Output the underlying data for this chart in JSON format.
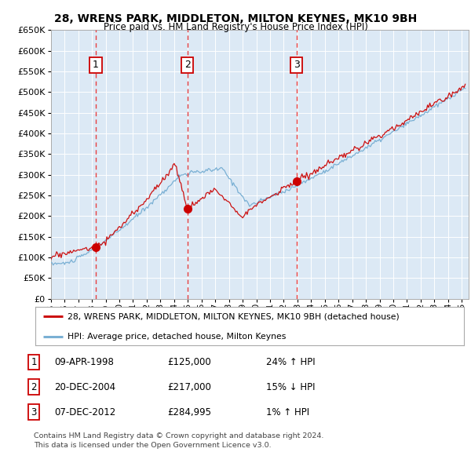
{
  "title": "28, WRENS PARK, MIDDLETON, MILTON KEYNES, MK10 9BH",
  "subtitle": "Price paid vs. HM Land Registry's House Price Index (HPI)",
  "xlim_start": 1995.0,
  "xlim_end": 2025.5,
  "ylim_min": 0,
  "ylim_max": 650000,
  "yticks": [
    0,
    50000,
    100000,
    150000,
    200000,
    250000,
    300000,
    350000,
    400000,
    450000,
    500000,
    550000,
    600000,
    650000
  ],
  "background_color": "#dce9f5",
  "plot_bg_color": "#dce9f5",
  "grid_color": "#ffffff",
  "sale_dates": [
    1998.27,
    2004.97,
    2012.93
  ],
  "sale_prices": [
    125000,
    217000,
    284995
  ],
  "sale_labels": [
    "1",
    "2",
    "3"
  ],
  "vline_color": "#e84040",
  "sale_dot_color": "#cc0000",
  "hpi_line_color": "#7ab0d4",
  "price_line_color": "#cc1111",
  "legend_sale_label": "28, WRENS PARK, MIDDLETON, MILTON KEYNES, MK10 9BH (detached house)",
  "legend_hpi_label": "HPI: Average price, detached house, Milton Keynes",
  "table_rows": [
    {
      "num": "1",
      "date": "09-APR-1998",
      "price": "£125,000",
      "hpi": "24% ↑ HPI"
    },
    {
      "num": "2",
      "date": "20-DEC-2004",
      "price": "£217,000",
      "hpi": "15% ↓ HPI"
    },
    {
      "num": "3",
      "date": "07-DEC-2012",
      "price": "£284,995",
      "hpi": "1% ↑ HPI"
    }
  ],
  "footnote1": "Contains HM Land Registry data © Crown copyright and database right 2024.",
  "footnote2": "This data is licensed under the Open Government Licence v3.0."
}
